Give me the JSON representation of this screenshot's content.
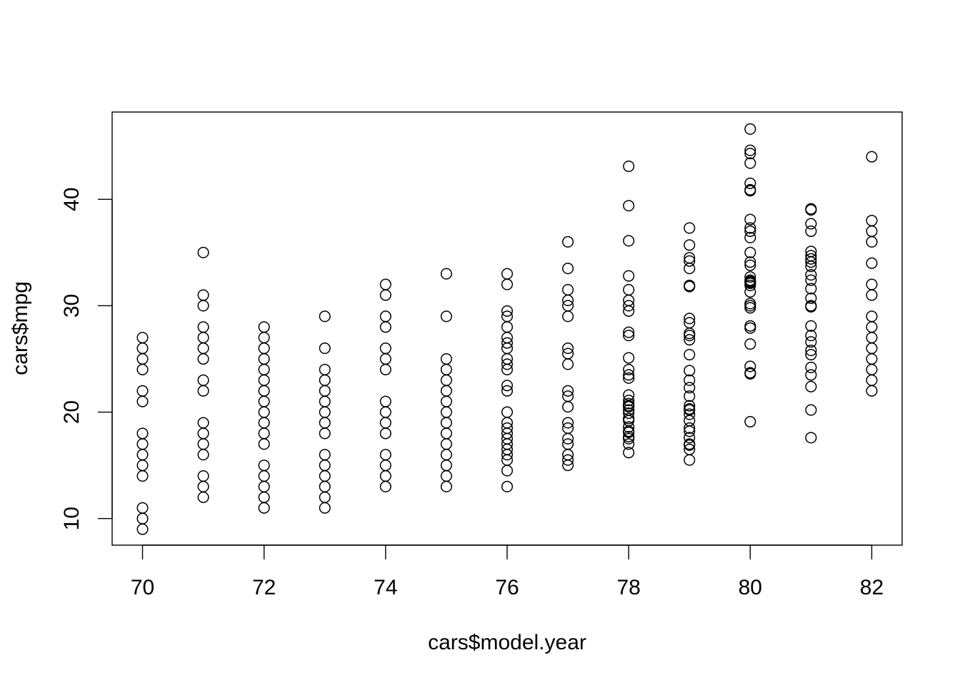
{
  "chart_data": {
    "type": "scatter",
    "title": "",
    "xlabel": "cars$model.year",
    "ylabel": "cars$mpg",
    "xlim": [
      69.5,
      82.5
    ],
    "ylim": [
      7.5,
      48.2
    ],
    "xticks": [
      70,
      72,
      74,
      76,
      78,
      80,
      82
    ],
    "yticks": [
      10,
      20,
      30,
      40
    ],
    "grid": false,
    "legend": "none",
    "marker": "open-circle",
    "color": "#000000",
    "points_by_year": {
      "70": [
        27,
        26,
        25,
        24,
        22,
        21,
        18,
        17,
        16,
        15,
        14,
        11,
        10,
        9
      ],
      "71": [
        35,
        31,
        30,
        28,
        27,
        26,
        25,
        23,
        22,
        19,
        18,
        17,
        16,
        14,
        13,
        12
      ],
      "72": [
        28,
        27,
        26,
        25,
        24,
        23,
        22,
        21,
        20,
        19,
        18,
        17,
        15,
        14,
        13,
        12,
        11
      ],
      "73": [
        29,
        26,
        24,
        23,
        22,
        21,
        20,
        19,
        18,
        16,
        15,
        14,
        13,
        12,
        11
      ],
      "74": [
        32,
        31,
        29,
        28,
        26,
        25,
        24,
        21,
        20,
        19,
        18,
        16,
        15,
        14,
        13
      ],
      "75": [
        33,
        29,
        25,
        24,
        23,
        22,
        21,
        20,
        19,
        18,
        17,
        16,
        15,
        14,
        13
      ],
      "76": [
        33,
        32,
        29.5,
        29,
        28,
        27,
        26.5,
        26,
        25,
        24.5,
        24,
        22.5,
        22,
        20,
        19,
        18.5,
        18,
        17.5,
        17,
        16.5,
        16,
        15.5,
        14.5,
        13
      ],
      "77": [
        36,
        33.5,
        31.5,
        30.5,
        30,
        29,
        26,
        25.5,
        24.5,
        22,
        21.5,
        20.5,
        19,
        18.5,
        17.5,
        17,
        16,
        15.5,
        15
      ],
      "78": [
        43.1,
        39.4,
        36.1,
        32.8,
        31.5,
        30.5,
        30,
        29.5,
        27.5,
        27.2,
        25.1,
        24,
        23.5,
        23.2,
        21.6,
        21.1,
        20.8,
        20.6,
        20.5,
        20.2,
        19.9,
        19.4,
        19.2,
        18.6,
        18.2,
        18.1,
        17.7,
        17.5,
        17,
        16.2
      ],
      "79": [
        37.3,
        35.7,
        34.5,
        34.2,
        33.5,
        31.9,
        31.8,
        28.8,
        28.4,
        27.4,
        27.2,
        26.8,
        25.4,
        23.9,
        23,
        22.3,
        21.5,
        20.6,
        20.3,
        20.2,
        19.8,
        19.2,
        18.5,
        18.2,
        17.6,
        17,
        16.9,
        16.5,
        15.5
      ],
      "80": [
        46.6,
        44.6,
        44.3,
        43.4,
        41.5,
        40.9,
        40.8,
        38.1,
        37.3,
        37,
        36.4,
        35,
        34.1,
        33.8,
        32.7,
        32.4,
        32.3,
        32.2,
        32.1,
        31.9,
        31.3,
        30.2,
        30,
        29.8,
        28.1,
        27.9,
        26.4,
        24.3,
        23.7,
        23.6,
        19.1
      ],
      "81": [
        39.1,
        39,
        37.7,
        37,
        35.1,
        34.7,
        34.4,
        34.1,
        33.7,
        32.9,
        32.4,
        31.6,
        30.7,
        30,
        29.9,
        28.1,
        27.2,
        26.6,
        25.8,
        25.4,
        24.2,
        23.5,
        22.4,
        20.2,
        17.6
      ],
      "82": [
        44,
        38,
        37,
        36,
        34,
        32,
        31,
        29,
        28,
        27,
        26,
        25,
        24,
        23,
        22
      ]
    }
  }
}
